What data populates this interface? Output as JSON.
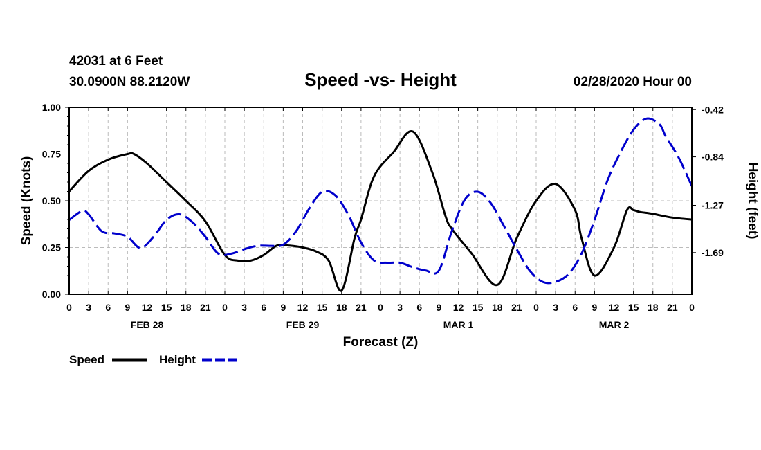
{
  "chart_data": {
    "type": "line",
    "station_line": "42031 at 6 Feet",
    "location_line": "30.0900N 88.2120W",
    "title": "Speed -vs- Height",
    "date_line": "02/28/2020 Hour 00",
    "xlabel": "Forecast (Z)",
    "ylabel": "Speed (Knots)",
    "y2label": "Height (feet)",
    "x_hours_range": [
      0,
      96
    ],
    "ylim": [
      0.0,
      1.0
    ],
    "y2lim": [
      -2.06,
      -0.4
    ],
    "y_ticks": [
      "0.00",
      "0.25",
      "0.50",
      "0.75",
      "1.00"
    ],
    "y_tick_values": [
      0.0,
      0.25,
      0.5,
      0.75,
      1.0
    ],
    "y2_ticks": [
      "-0.42",
      "-0.84",
      "-1.27",
      "-1.69"
    ],
    "y2_tick_values": [
      -0.42,
      -0.84,
      -1.27,
      -1.69
    ],
    "x_tick_labels": [
      "0",
      "3",
      "6",
      "9",
      "12",
      "15",
      "18",
      "21",
      "0",
      "3",
      "6",
      "9",
      "12",
      "15",
      "18",
      "21",
      "0",
      "3",
      "6",
      "9",
      "12",
      "15",
      "18",
      "21",
      "0",
      "3",
      "6",
      "9",
      "12",
      "15",
      "18",
      "21",
      "0"
    ],
    "day_labels": [
      {
        "label": "FEB 28",
        "hour": 12
      },
      {
        "label": "FEB 29",
        "hour": 36
      },
      {
        "label": "MAR 1",
        "hour": 60
      },
      {
        "label": "MAR 2",
        "hour": 84
      }
    ],
    "grid": true,
    "legend_position": "bottom-left",
    "series": [
      {
        "name": "Speed",
        "axis": "left",
        "color": "#000000",
        "style": "solid",
        "x": [
          0,
          3,
          6,
          9,
          10,
          12,
          15,
          18,
          21,
          24,
          26,
          28,
          30,
          32,
          34,
          36,
          38,
          40,
          42,
          44,
          45,
          47,
          50,
          53,
          56,
          58,
          59,
          62,
          66,
          69,
          72,
          75,
          78,
          79,
          81,
          84,
          86,
          87,
          88,
          90,
          93,
          96
        ],
        "y": [
          0.55,
          0.66,
          0.72,
          0.75,
          0.75,
          0.7,
          0.6,
          0.5,
          0.39,
          0.21,
          0.18,
          0.18,
          0.21,
          0.26,
          0.26,
          0.25,
          0.23,
          0.18,
          0.02,
          0.3,
          0.4,
          0.63,
          0.76,
          0.87,
          0.65,
          0.42,
          0.35,
          0.22,
          0.05,
          0.3,
          0.5,
          0.59,
          0.45,
          0.3,
          0.1,
          0.25,
          0.45,
          0.45,
          0.44,
          0.43,
          0.41,
          0.4
        ]
      },
      {
        "name": "Height",
        "axis": "right",
        "color": "#0000cc",
        "style": "dashed",
        "x": [
          0,
          2,
          3,
          5,
          7,
          9,
          11,
          13,
          15,
          17,
          19,
          21,
          23,
          25,
          27,
          29,
          31,
          33,
          35,
          37,
          39,
          41,
          43,
          45,
          47,
          49,
          51,
          53,
          55,
          57,
          59,
          61,
          63,
          65,
          67,
          69,
          71,
          73,
          75,
          77,
          79,
          81,
          83,
          85,
          87,
          89,
          91,
          92,
          94,
          96
        ],
        "y": [
          -1.4,
          -1.32,
          -1.35,
          -1.5,
          -1.52,
          -1.55,
          -1.65,
          -1.55,
          -1.4,
          -1.35,
          -1.42,
          -1.55,
          -1.7,
          -1.7,
          -1.66,
          -1.63,
          -1.63,
          -1.62,
          -1.5,
          -1.3,
          -1.15,
          -1.18,
          -1.35,
          -1.6,
          -1.76,
          -1.78,
          -1.78,
          -1.82,
          -1.85,
          -1.85,
          -1.5,
          -1.22,
          -1.15,
          -1.25,
          -1.45,
          -1.66,
          -1.85,
          -1.95,
          -1.95,
          -1.88,
          -1.7,
          -1.4,
          -1.05,
          -0.8,
          -0.6,
          -0.5,
          -0.55,
          -0.66,
          -0.85,
          -1.1
        ]
      }
    ]
  },
  "legend": {
    "speed_label": "Speed",
    "height_label": "Height"
  }
}
